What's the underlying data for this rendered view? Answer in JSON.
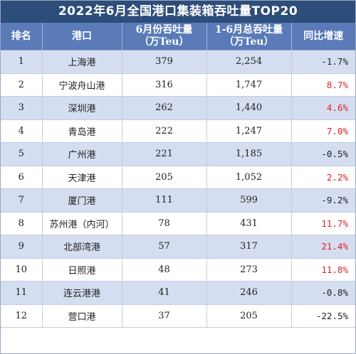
{
  "title": "2022年6月全国港口集装箱吞吐量TOP20",
  "headers": {
    "rank": "排名",
    "port": "港口",
    "june_l1": "6月份吞吐量",
    "june_l2": "（万Teu）",
    "ytd_l1": "1-6月总吞吐量",
    "ytd_l2": "（万Teu）",
    "yoy": "同比增速"
  },
  "colors": {
    "title_bg": "#2d4d7a",
    "header_bg": "#5a7ab8",
    "row_alt_bg": "#d4def0",
    "positive": "#e0202a",
    "negative": "#222222"
  },
  "rows": [
    {
      "rank": "1",
      "port": "上海港",
      "june": "379",
      "ytd": "2,254",
      "yoy": "-1.7%",
      "trend": "neg"
    },
    {
      "rank": "2",
      "port": "宁波舟山港",
      "june": "316",
      "ytd": "1,747",
      "yoy": "8.7%",
      "trend": "pos"
    },
    {
      "rank": "3",
      "port": "深圳港",
      "june": "262",
      "ytd": "1,440",
      "yoy": "4.6%",
      "trend": "pos"
    },
    {
      "rank": "4",
      "port": "青岛港",
      "june": "222",
      "ytd": "1,247",
      "yoy": "7.0%",
      "trend": "pos"
    },
    {
      "rank": "5",
      "port": "广州港",
      "june": "221",
      "ytd": "1,185",
      "yoy": "-0.5%",
      "trend": "neg"
    },
    {
      "rank": "6",
      "port": "天津港",
      "june": "205",
      "ytd": "1,052",
      "yoy": "2.2%",
      "trend": "pos"
    },
    {
      "rank": "7",
      "port": "厦门港",
      "june": "111",
      "ytd": "599",
      "yoy": "-9.2%",
      "trend": "neg"
    },
    {
      "rank": "8",
      "port": "苏州港（内河）",
      "june": "78",
      "ytd": "431",
      "yoy": "11.7%",
      "trend": "pos"
    },
    {
      "rank": "9",
      "port": "北部湾港",
      "june": "57",
      "ytd": "317",
      "yoy": "21.4%",
      "trend": "pos"
    },
    {
      "rank": "10",
      "port": "日照港",
      "june": "48",
      "ytd": "273",
      "yoy": "11.8%",
      "trend": "pos"
    },
    {
      "rank": "11",
      "port": "连云港港",
      "june": "41",
      "ytd": "246",
      "yoy": "-0.8%",
      "trend": "neg"
    },
    {
      "rank": "12",
      "port": "营口港",
      "june": "37",
      "ytd": "205",
      "yoy": "-22.5%",
      "trend": "neg"
    }
  ]
}
